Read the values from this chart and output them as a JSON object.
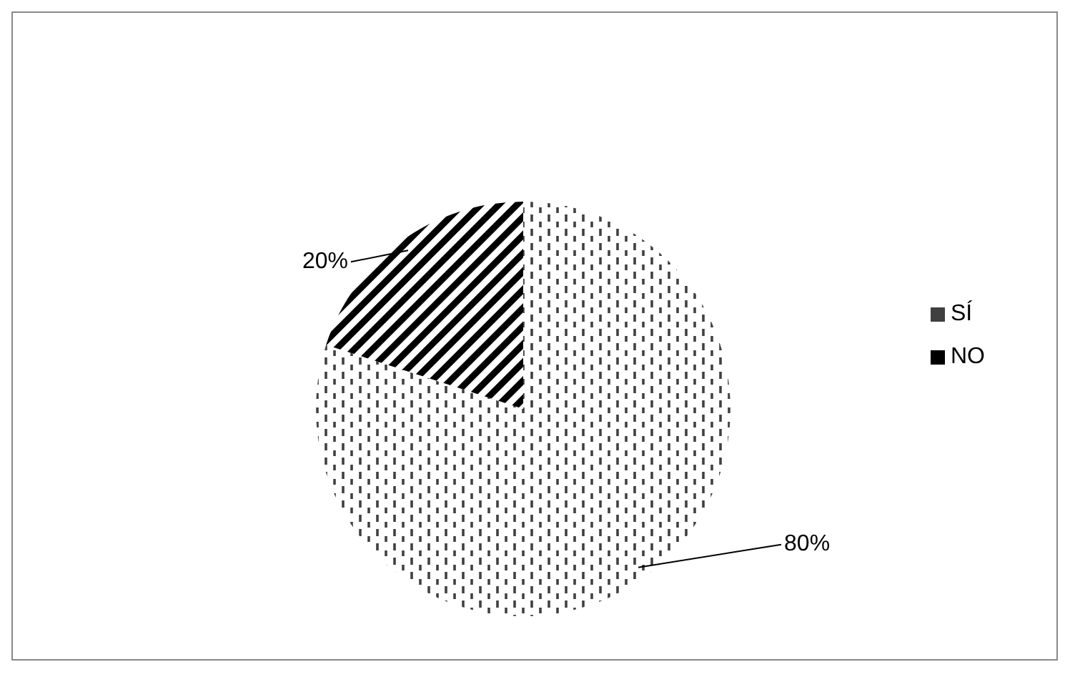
{
  "chart_data": {
    "type": "pie",
    "categories": [
      "SÍ",
      "NO"
    ],
    "values": [
      80,
      20
    ],
    "colors": [
      "#404040",
      "#000000"
    ],
    "value_labels": [
      "80%",
      "20%"
    ],
    "legend": "right"
  }
}
